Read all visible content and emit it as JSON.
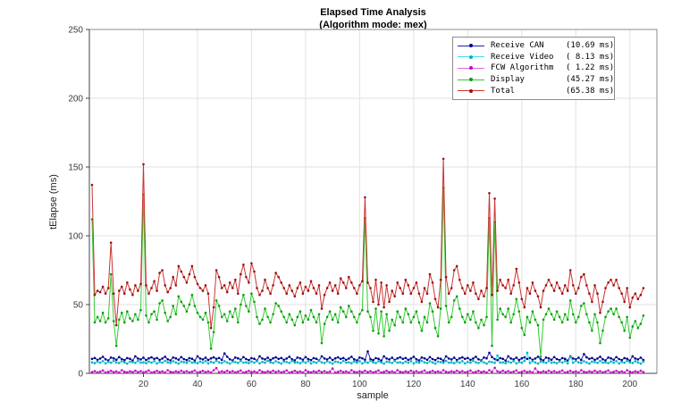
{
  "chart_data": {
    "type": "line",
    "title": "Elapsed Time Analysis",
    "subtitle": "(Algorithm mode: mex)",
    "xlabel": "sample",
    "ylabel": "tElapse (ms)",
    "xlim": [
      0,
      210
    ],
    "ylim": [
      0,
      250
    ],
    "xticks": [
      20,
      40,
      60,
      80,
      100,
      120,
      140,
      160,
      180,
      200
    ],
    "yticks": [
      0,
      50,
      100,
      150,
      200,
      250
    ],
    "x_start": 1,
    "grid": true,
    "legend_position": "top-right",
    "colors": {
      "grid": "#e2e2e2",
      "box": "#8c8c8c",
      "axis": "#444444",
      "tick_label": "#3c3c3c",
      "background": "#ffffff"
    },
    "series": [
      {
        "name": "Receive CAN",
        "mean_label": "(10.69 ms)",
        "color": "#2222b4",
        "marker": "#00008b",
        "values": [
          10.5,
          11.2,
          9.8,
          10.8,
          12.1,
          10.2,
          9.4,
          11.5,
          10.9,
          9.9,
          11.8,
          10.4,
          9.6,
          11.1,
          10.6,
          9.2,
          12.4,
          10.8,
          10.1,
          11.4,
          9.7,
          10.9,
          11.6,
          10.5,
          11.2,
          9.8,
          10.8,
          12.1,
          10.2,
          9.4,
          11.5,
          10.9,
          9.9,
          11.8,
          10.4,
          9.6,
          11.1,
          10.6,
          9.2,
          12.4,
          10.8,
          10.1,
          11.4,
          9.7,
          10.9,
          11.6,
          10.5,
          11.2,
          9.8,
          14.5,
          12.1,
          10.2,
          9.4,
          11.5,
          10.9,
          9.9,
          11.8,
          10.4,
          9.6,
          11.1,
          10.6,
          9.2,
          12.4,
          10.8,
          10.1,
          11.4,
          9.7,
          10.9,
          11.6,
          10.5,
          11.2,
          9.8,
          10.8,
          12.1,
          10.2,
          9.4,
          11.5,
          10.9,
          9.9,
          11.8,
          10.4,
          9.6,
          11.1,
          10.6,
          9.2,
          12.4,
          10.8,
          10.1,
          11.4,
          9.7,
          10.9,
          11.6,
          10.5,
          11.2,
          9.8,
          10.8,
          12.1,
          10.2,
          9.4,
          11.5,
          10.9,
          9.9,
          16.0,
          10.4,
          9.6,
          11.1,
          10.6,
          9.2,
          12.4,
          10.8,
          10.1,
          11.4,
          9.7,
          10.9,
          11.6,
          10.5,
          11.2,
          9.8,
          10.8,
          12.1,
          10.2,
          9.4,
          11.5,
          10.9,
          9.9,
          11.8,
          10.4,
          9.6,
          11.1,
          10.6,
          9.2,
          12.4,
          10.8,
          10.1,
          11.4,
          9.7,
          10.9,
          11.6,
          10.5,
          11.2,
          9.8,
          10.8,
          12.1,
          10.2,
          9.4,
          11.5,
          10.9,
          15.0,
          11.8,
          10.4,
          9.6,
          11.1,
          10.6,
          9.2,
          12.4,
          10.8,
          10.1,
          11.4,
          9.7,
          10.9,
          11.6,
          10.5,
          11.2,
          9.8,
          10.8,
          12.1,
          10.2,
          9.4,
          11.5,
          10.9,
          9.9,
          11.8,
          10.4,
          9.6,
          11.1,
          10.6,
          9.2,
          12.4,
          10.8,
          10.1,
          11.4,
          9.7,
          14.0,
          11.6,
          10.5,
          11.2,
          9.8,
          10.8,
          12.1,
          10.2,
          9.4,
          11.5,
          10.9,
          9.9,
          11.8,
          10.4,
          9.6,
          11.1,
          10.6,
          9.2,
          12.4,
          10.8,
          10.1,
          11.4,
          9.7
        ]
      },
      {
        "name": "Receive Video",
        "mean_label": "( 8.13 ms)",
        "color": "#3ddfe4",
        "marker": "#00b0c0",
        "values": [
          8.0,
          7.4,
          8.6,
          7.8,
          8.9,
          7.2,
          8.3,
          7.7,
          9.1,
          8.0,
          7.5,
          8.8,
          7.9,
          7.1,
          8.5,
          8.2,
          7.6,
          9.0,
          7.8,
          8.0,
          7.4,
          8.6,
          7.8,
          8.9,
          7.2,
          8.3,
          7.7,
          9.1,
          8.0,
          7.5,
          8.8,
          7.9,
          7.1,
          8.5,
          8.2,
          7.6,
          9.0,
          7.8,
          8.0,
          7.4,
          8.6,
          7.8,
          8.9,
          7.2,
          8.3,
          7.7,
          9.1,
          8.0,
          7.5,
          8.8,
          7.9,
          7.1,
          8.5,
          8.2,
          7.6,
          9.0,
          7.8,
          8.0,
          7.4,
          8.6,
          7.8,
          8.9,
          7.2,
          8.3,
          7.7,
          9.1,
          8.0,
          7.5,
          8.8,
          7.9,
          7.1,
          8.5,
          8.2,
          7.6,
          9.0,
          7.8,
          8.0,
          7.4,
          8.6,
          7.8,
          8.9,
          7.2,
          8.3,
          7.7,
          9.1,
          8.0,
          7.5,
          8.8,
          7.9,
          7.1,
          8.5,
          8.2,
          7.6,
          9.0,
          7.8,
          8.0,
          7.4,
          8.6,
          7.8,
          8.9,
          7.2,
          8.3,
          7.7,
          9.1,
          8.0,
          7.5,
          8.8,
          7.9,
          7.1,
          8.5,
          8.2,
          7.6,
          9.0,
          7.8,
          8.0,
          7.4,
          8.6,
          7.8,
          8.9,
          7.2,
          8.3,
          7.7,
          9.1,
          8.0,
          7.5,
          8.8,
          7.9,
          7.1,
          8.5,
          8.2,
          7.6,
          9.0,
          7.8,
          8.0,
          7.4,
          8.6,
          7.8,
          8.9,
          7.2,
          8.3,
          7.7,
          9.1,
          8.0,
          7.5,
          8.8,
          7.9,
          7.1,
          8.5,
          8.2,
          7.6,
          13.0,
          7.8,
          8.0,
          7.4,
          8.6,
          7.8,
          8.9,
          7.2,
          8.3,
          7.7,
          9.1,
          15.0,
          7.5,
          8.8,
          7.9,
          7.1,
          8.5,
          8.2,
          7.6,
          9.0,
          7.8,
          8.0,
          7.4,
          8.6,
          7.8,
          8.9,
          7.2,
          12.0,
          7.7,
          9.1,
          8.0,
          7.5,
          8.8,
          7.9,
          7.1,
          8.5,
          8.2,
          7.6,
          9.0,
          7.8,
          8.0,
          7.4,
          8.6,
          7.8,
          8.9,
          7.2,
          8.3,
          7.7,
          9.1,
          8.0,
          7.5,
          8.8,
          7.9,
          7.1,
          8.5
        ]
      },
      {
        "name": "FCW Algorithm",
        "mean_label": "( 1.22 ms)",
        "color": "#dd66dd",
        "marker": "#cc00cc",
        "values": [
          1.0,
          1.6,
          0.7,
          1.3,
          2.1,
          0.5,
          1.1,
          1.8,
          0.9,
          1.4,
          0.6,
          2.3,
          1.2,
          0.8,
          1.5,
          1.0,
          1.9,
          1.0,
          1.6,
          0.7,
          1.3,
          2.1,
          0.5,
          1.1,
          1.8,
          0.9,
          1.4,
          0.6,
          2.3,
          1.2,
          0.8,
          1.5,
          1.0,
          1.9,
          1.0,
          1.6,
          0.7,
          1.3,
          2.1,
          0.5,
          1.1,
          1.8,
          0.9,
          1.4,
          0.6,
          2.3,
          3.8,
          0.8,
          1.5,
          1.0,
          1.9,
          1.0,
          1.6,
          0.7,
          1.3,
          2.1,
          0.5,
          1.1,
          1.8,
          0.9,
          1.4,
          0.6,
          2.3,
          1.2,
          0.8,
          1.5,
          1.0,
          1.9,
          1.0,
          1.6,
          0.7,
          1.3,
          2.1,
          0.5,
          1.1,
          1.8,
          0.9,
          1.4,
          0.6,
          2.3,
          1.2,
          0.8,
          1.5,
          1.0,
          1.9,
          1.0,
          1.6,
          0.7,
          1.3,
          3.5,
          0.5,
          1.1,
          1.8,
          0.9,
          1.4,
          0.6,
          2.3,
          1.2,
          0.8,
          1.5,
          1.0,
          1.9,
          1.0,
          1.6,
          0.7,
          1.3,
          2.1,
          0.5,
          1.1,
          1.8,
          0.9,
          1.4,
          0.6,
          2.3,
          1.2,
          0.8,
          1.5,
          1.0,
          1.9,
          1.0,
          1.6,
          0.7,
          1.3,
          2.1,
          0.5,
          1.1,
          1.8,
          0.9,
          1.4,
          0.6,
          2.3,
          1.2,
          0.8,
          1.5,
          1.0,
          1.9,
          1.0,
          1.6,
          0.7,
          1.3,
          2.1,
          0.5,
          1.1,
          1.8,
          0.9,
          1.4,
          0.6,
          2.3,
          1.2,
          4.0,
          1.5,
          1.0,
          1.9,
          1.0,
          1.6,
          0.7,
          1.3,
          2.1,
          0.5,
          1.1,
          1.8,
          0.9,
          1.4,
          0.6,
          3.6,
          1.2,
          0.8,
          1.5,
          1.0,
          1.9,
          1.0,
          1.6,
          0.7,
          1.3,
          2.1,
          0.5,
          1.1,
          1.8,
          0.9,
          1.4,
          0.6,
          2.3,
          1.2,
          0.8,
          1.5,
          1.0,
          1.9,
          1.0,
          1.6,
          0.7,
          1.3,
          2.1,
          0.5,
          1.1,
          1.8,
          0.9,
          1.4,
          0.6,
          2.3,
          1.2,
          0.8,
          1.5,
          1.0,
          1.9,
          1.0
        ]
      },
      {
        "name": "Display",
        "mean_label": "(45.27 ms)",
        "color": "#33cc33",
        "marker": "#149914",
        "values": [
          112,
          37,
          41,
          38,
          44,
          37,
          40,
          72,
          38,
          20,
          39,
          44,
          37,
          45,
          40,
          38,
          43,
          39,
          46,
          130,
          42,
          37,
          43,
          45,
          39,
          51,
          53,
          44,
          38,
          41,
          49,
          43,
          56,
          52,
          49,
          45,
          50,
          57,
          49,
          44,
          41,
          39,
          44,
          37,
          18,
          30,
          53,
          49,
          41,
          43,
          38,
          45,
          41,
          47,
          37,
          50,
          57,
          49,
          45,
          58,
          52,
          41,
          36,
          39,
          47,
          41,
          37,
          43,
          51,
          49,
          45,
          41,
          37,
          43,
          39,
          35,
          41,
          45,
          37,
          42,
          39,
          46,
          41,
          37,
          43,
          22,
          36,
          41,
          45,
          39,
          43,
          37,
          48,
          45,
          41,
          49,
          45,
          41,
          37,
          43,
          46,
          113,
          45,
          41,
          31,
          47,
          29,
          45,
          27,
          43,
          31,
          39,
          35,
          45,
          41,
          37,
          47,
          43,
          37,
          41,
          45,
          37,
          31,
          41,
          37,
          51,
          45,
          33,
          27,
          47,
          135,
          49,
          37,
          41,
          53,
          56,
          47,
          41,
          37,
          43,
          39,
          45,
          37,
          33,
          39,
          35,
          41,
          113,
          20,
          110,
          39,
          47,
          43,
          41,
          47,
          37,
          43,
          54,
          45,
          33,
          28,
          41,
          37,
          45,
          39,
          35,
          12,
          39,
          43,
          47,
          43,
          39,
          45,
          41,
          37,
          43,
          39,
          53,
          43,
          37,
          41,
          49,
          51,
          43,
          37,
          31,
          43,
          37,
          22,
          31,
          41,
          45,
          47,
          43,
          47,
          41,
          37,
          31,
          41,
          26,
          34,
          38,
          33,
          36,
          42
        ]
      },
      {
        "name": "Total",
        "mean_label": "(65.38 ms)",
        "color": "#cc3333",
        "marker": "#991111",
        "values": [
          137,
          57,
          60,
          59,
          63,
          58,
          62,
          95,
          58,
          35,
          60,
          63,
          58,
          66,
          61,
          57,
          64,
          60,
          65,
          152,
          64,
          58,
          62,
          67,
          60,
          73,
          75,
          64,
          59,
          62,
          70,
          64,
          78,
          74,
          70,
          66,
          72,
          78,
          70,
          65,
          62,
          60,
          64,
          58,
          33,
          48,
          75,
          70,
          62,
          64,
          59,
          66,
          62,
          68,
          58,
          72,
          79,
          70,
          66,
          80,
          74,
          62,
          57,
          60,
          68,
          62,
          58,
          64,
          73,
          70,
          66,
          62,
          58,
          64,
          60,
          56,
          62,
          66,
          58,
          63,
          60,
          67,
          62,
          58,
          64,
          47,
          57,
          62,
          66,
          60,
          64,
          58,
          69,
          66,
          62,
          70,
          66,
          62,
          58,
          64,
          67,
          128,
          66,
          62,
          52,
          68,
          50,
          66,
          48,
          64,
          52,
          60,
          56,
          66,
          62,
          58,
          68,
          64,
          58,
          62,
          66,
          58,
          52,
          62,
          58,
          72,
          66,
          54,
          48,
          68,
          156,
          70,
          58,
          62,
          75,
          78,
          68,
          62,
          58,
          64,
          60,
          66,
          58,
          54,
          60,
          56,
          62,
          131,
          57,
          127,
          60,
          68,
          64,
          62,
          68,
          58,
          64,
          76,
          66,
          54,
          48,
          62,
          58,
          66,
          60,
          56,
          48,
          60,
          64,
          68,
          64,
          60,
          66,
          62,
          58,
          64,
          60,
          75,
          64,
          58,
          62,
          70,
          72,
          64,
          58,
          52,
          64,
          58,
          44,
          52,
          62,
          66,
          68,
          64,
          68,
          62,
          58,
          52,
          62,
          48,
          55,
          58,
          54,
          57,
          62
        ]
      }
    ]
  }
}
